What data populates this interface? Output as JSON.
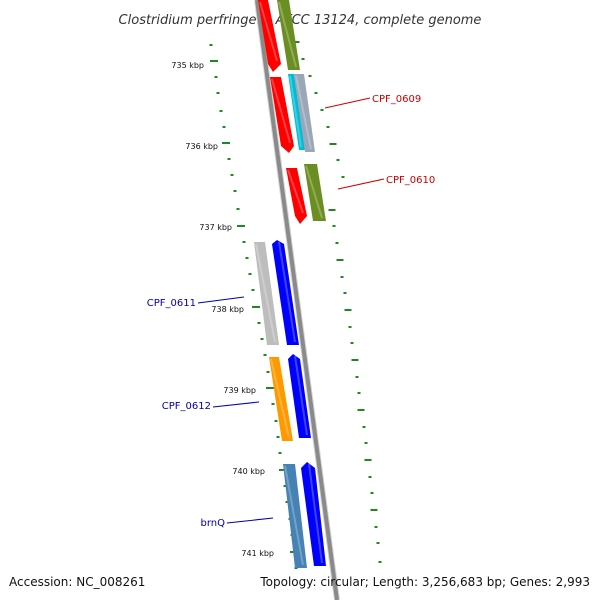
{
  "title": "Clostridium perfringens ATCC 13124, complete genome",
  "footer": {
    "accession": "Accession: NC_008261",
    "topology": "Topology: circular; Length: 3,256,683 bp; Genes: 2,993"
  },
  "colors": {
    "backbone": "#8a8a8a",
    "backbone_edge": "#d4d4d4",
    "tick": "#1f8a1f",
    "plus_label": "#cc0000",
    "minus_label": "#0000aa"
  },
  "ticks": [
    {
      "label": "735 kbp",
      "major": true
    },
    {
      "label": "736 kbp",
      "major": true
    },
    {
      "label": "737 kbp",
      "major": true
    },
    {
      "label": "738 kbp",
      "major": true
    },
    {
      "label": "739 kbp",
      "major": true
    },
    {
      "label": "740 kbp",
      "major": true
    },
    {
      "label": "741 kbp",
      "major": true
    }
  ],
  "features": [
    {
      "id": "f1",
      "strand": "+",
      "color": "#ff0000",
      "icon": "arrow-feature"
    },
    {
      "id": "f2",
      "strand": "+",
      "color": "#6b8e23",
      "icon": "box-feature"
    },
    {
      "id": "f3",
      "strand": "+",
      "color": "#ff0000",
      "icon": "arrow-feature"
    },
    {
      "id": "f4",
      "strand": "+",
      "color": "#00bcd4",
      "icon": "box-feature"
    },
    {
      "id": "f5",
      "strand": "+",
      "color": "#9aa7b8",
      "icon": "box-feature"
    },
    {
      "id": "f6",
      "strand": "+",
      "color": "#ff0000",
      "icon": "arrow-feature"
    },
    {
      "id": "f7",
      "strand": "+",
      "color": "#6b8e23",
      "icon": "box-feature"
    },
    {
      "id": "f8",
      "strand": "-",
      "color": "#bdbdbd",
      "icon": "box-feature"
    },
    {
      "id": "f9",
      "strand": "-",
      "color": "#0000ff",
      "icon": "arrow-feature"
    },
    {
      "id": "f10",
      "strand": "-",
      "color": "#ff9900",
      "icon": "box-feature"
    },
    {
      "id": "f11",
      "strand": "-",
      "color": "#0000ff",
      "icon": "arrow-feature"
    },
    {
      "id": "f12",
      "strand": "-",
      "color": "#4682b4",
      "icon": "box-feature"
    },
    {
      "id": "f13",
      "strand": "-",
      "color": "#0000ff",
      "icon": "arrow-feature"
    }
  ],
  "gene_labels": [
    {
      "text": "CPF_0609",
      "strand": "+"
    },
    {
      "text": "CPF_0610",
      "strand": "+"
    },
    {
      "text": "CPF_0611",
      "strand": "-"
    },
    {
      "text": "CPF_0612",
      "strand": "-"
    },
    {
      "text": "brnQ",
      "strand": "-"
    }
  ]
}
